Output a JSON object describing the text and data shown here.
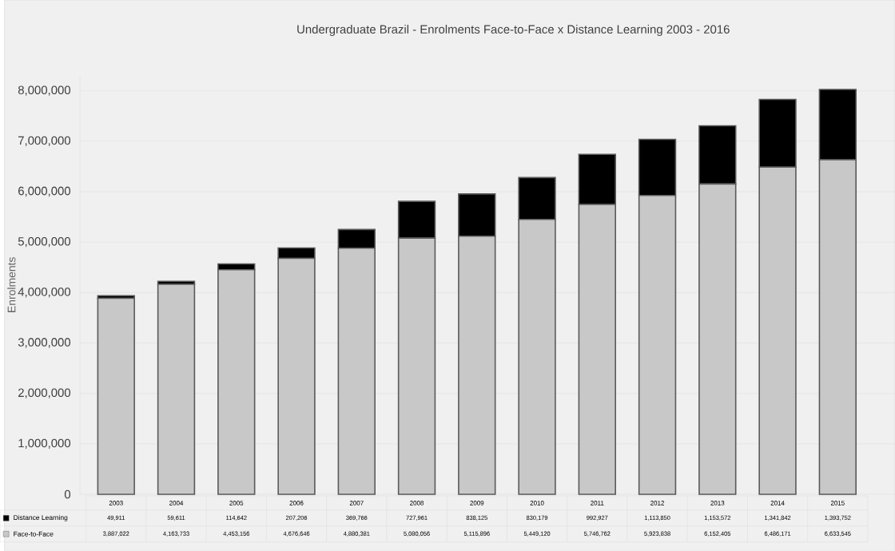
{
  "chart_data": {
    "type": "bar",
    "stacked": true,
    "title": "Undergraduate Brazil - Enrolments Face-to-Face x Distance Learning 2003 - 2016",
    "ylabel": "Enrolments",
    "categories": [
      "2003",
      "2004",
      "2005",
      "2006",
      "2007",
      "2008",
      "2009",
      "2010",
      "2011",
      "2012",
      "2013",
      "2014",
      "2015"
    ],
    "series": [
      {
        "name": "Face-to-Face",
        "color": "#c8c8c8",
        "values": [
          3887022,
          4163733,
          4453156,
          4676646,
          4880381,
          5080056,
          5115896,
          5449120,
          5746762,
          5923838,
          6152405,
          6486171,
          6633545
        ],
        "value_labels": [
          "3,887,022",
          "4,163,733",
          "4,453,156",
          "4,676,646",
          "4,880,381",
          "5,080,056",
          "5,115,896",
          "5,449,120",
          "5,746,762",
          "5,923,838",
          "6,152,405",
          "6,486,171",
          "6,633,545"
        ]
      },
      {
        "name": "Distance Learning",
        "color": "#000000",
        "values": [
          49911,
          59611,
          114642,
          207206,
          369766,
          727961,
          838125,
          830179,
          992927,
          1113850,
          1153572,
          1341842,
          1393752
        ],
        "value_labels": [
          "49,911",
          "59,611",
          "114,642",
          "207,206",
          "369,766",
          "727,961",
          "838,125",
          "830,179",
          "992,927",
          "1,113,850",
          "1,153,572",
          "1,341,842",
          "1,393,752"
        ]
      }
    ],
    "ylim": [
      0,
      8300000
    ],
    "yticks": [
      0,
      {
        "value": 1000000,
        "label": "1,000,000"
      },
      {
        "value": 2000000,
        "label": "2,000,000"
      },
      {
        "value": 3000000,
        "label": "3,000,000"
      },
      {
        "value": 4000000,
        "label": "4,000,000"
      },
      {
        "value": 5000000,
        "label": "5,000,000"
      },
      {
        "value": 6000000,
        "label": "6,000,000"
      },
      {
        "value": 7000000,
        "label": "7,000,000"
      },
      {
        "value": 8000000,
        "label": "8,000,000"
      }
    ],
    "grid": "y",
    "legend": "bottom"
  }
}
